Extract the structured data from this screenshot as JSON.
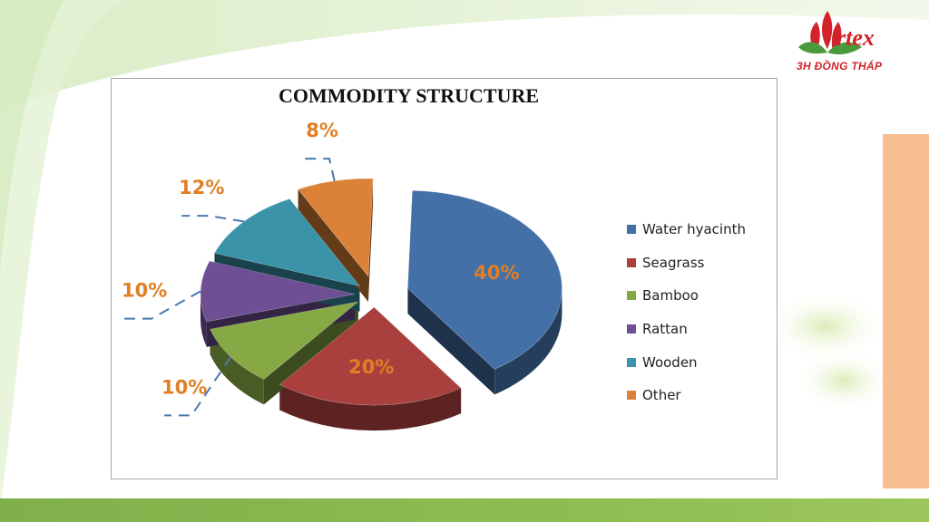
{
  "slide": {
    "logo_text": "Artex",
    "logo_subtitle": "3H ĐỒNG THÁP",
    "colors": {
      "bottom_band": "#8dbd52",
      "side_panel": "#f7bf90",
      "logo_red": "#d2232a",
      "logo_green": "#4a9a3c"
    }
  },
  "chart_data": {
    "type": "pie",
    "title": "COMMODITY STRUCTURE",
    "style": "3d-exploded",
    "legend_position": "right",
    "label_color": "#e07f24",
    "slices": [
      {
        "name": "Water hyacinth",
        "value": 40,
        "label": "40%",
        "color": "#4470a8"
      },
      {
        "name": "Seagrass",
        "value": 20,
        "label": "20%",
        "color": "#a9403d"
      },
      {
        "name": "Bamboo",
        "value": 10,
        "label": "10%",
        "color": "#86a845"
      },
      {
        "name": "Rattan",
        "value": 10,
        "label": "10%",
        "color": "#6e4f93"
      },
      {
        "name": "Wooden",
        "value": 12,
        "label": "12%",
        "color": "#3a93a9"
      },
      {
        "name": "Other",
        "value": 8,
        "label": "8%",
        "color": "#dc8238"
      }
    ]
  }
}
